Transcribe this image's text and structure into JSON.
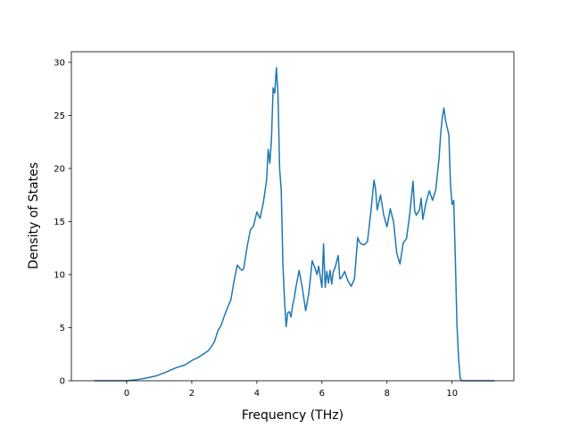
{
  "chart_data": {
    "type": "line",
    "title": "",
    "xlabel": "Frequency (THz)",
    "ylabel": "Density of States",
    "xlim": [
      -1.7,
      11.9
    ],
    "ylim": [
      0,
      31
    ],
    "xticks": [
      0,
      2,
      4,
      6,
      8,
      10
    ],
    "yticks": [
      0,
      5,
      10,
      15,
      20,
      25,
      30
    ],
    "grid": false,
    "legend": "none",
    "line_color": "#1f77b4",
    "series": [
      {
        "x": [
          -1.0,
          -0.5,
          0.0,
          0.3,
          0.6,
          0.9,
          1.2,
          1.5,
          1.8,
          2.0,
          2.2,
          2.4,
          2.5,
          2.6,
          2.7,
          2.8,
          2.9,
          3.0,
          3.1,
          3.2,
          3.3,
          3.4,
          3.5,
          3.55,
          3.6,
          3.7,
          3.8,
          3.9,
          4.0,
          4.1,
          4.2,
          4.3,
          4.35,
          4.4,
          4.45,
          4.5,
          4.55,
          4.6,
          4.65,
          4.7,
          4.75,
          4.8,
          4.85,
          4.9,
          4.95,
          5.0,
          5.05,
          5.1,
          5.15,
          5.2,
          5.3,
          5.4,
          5.5,
          5.6,
          5.7,
          5.8,
          5.85,
          5.9,
          6.0,
          6.05,
          6.1,
          6.15,
          6.2,
          6.25,
          6.3,
          6.35,
          6.4,
          6.5,
          6.55,
          6.6,
          6.7,
          6.8,
          6.9,
          7.0,
          7.1,
          7.15,
          7.2,
          7.3,
          7.4,
          7.5,
          7.6,
          7.65,
          7.7,
          7.8,
          7.9,
          8.0,
          8.1,
          8.2,
          8.3,
          8.4,
          8.5,
          8.6,
          8.7,
          8.8,
          8.85,
          8.9,
          9.0,
          9.05,
          9.1,
          9.2,
          9.3,
          9.4,
          9.5,
          9.6,
          9.65,
          9.7,
          9.75,
          9.8,
          9.9,
          9.95,
          10.0,
          10.05,
          10.1,
          10.15,
          10.2,
          10.25,
          10.3,
          10.4,
          10.6,
          11.0,
          11.3
        ],
        "y": [
          0.0,
          0.0,
          0.0,
          0.1,
          0.25,
          0.45,
          0.8,
          1.2,
          1.5,
          1.9,
          2.2,
          2.6,
          2.8,
          3.2,
          3.7,
          4.7,
          5.2,
          6.1,
          6.9,
          7.6,
          9.4,
          10.9,
          10.5,
          10.4,
          10.6,
          12.6,
          14.2,
          14.6,
          15.9,
          15.3,
          16.8,
          18.9,
          21.8,
          20.5,
          22.8,
          27.6,
          27.1,
          29.5,
          27.0,
          20.0,
          17.9,
          11.0,
          7.6,
          5.1,
          6.4,
          6.5,
          6.0,
          7.1,
          7.8,
          8.8,
          10.4,
          8.7,
          6.6,
          8.3,
          11.3,
          10.5,
          10.0,
          10.8,
          8.8,
          12.9,
          8.8,
          10.3,
          9.2,
          10.4,
          9.1,
          10.3,
          10.6,
          11.8,
          9.6,
          9.7,
          10.3,
          9.4,
          8.9,
          9.6,
          13.5,
          13.1,
          12.9,
          12.8,
          13.1,
          15.8,
          18.9,
          18.0,
          16.1,
          17.5,
          15.6,
          14.5,
          16.2,
          15.0,
          12.0,
          11.0,
          13.0,
          13.4,
          15.7,
          18.8,
          16.0,
          15.6,
          16.1,
          17.2,
          15.2,
          16.8,
          17.9,
          17.0,
          18.0,
          21.0,
          23.3,
          24.8,
          25.7,
          24.5,
          23.2,
          18.6,
          16.6,
          17.0,
          11.5,
          5.3,
          2.1,
          0.2,
          0.0,
          0.0,
          0.0,
          0.0,
          0.0
        ]
      }
    ]
  }
}
